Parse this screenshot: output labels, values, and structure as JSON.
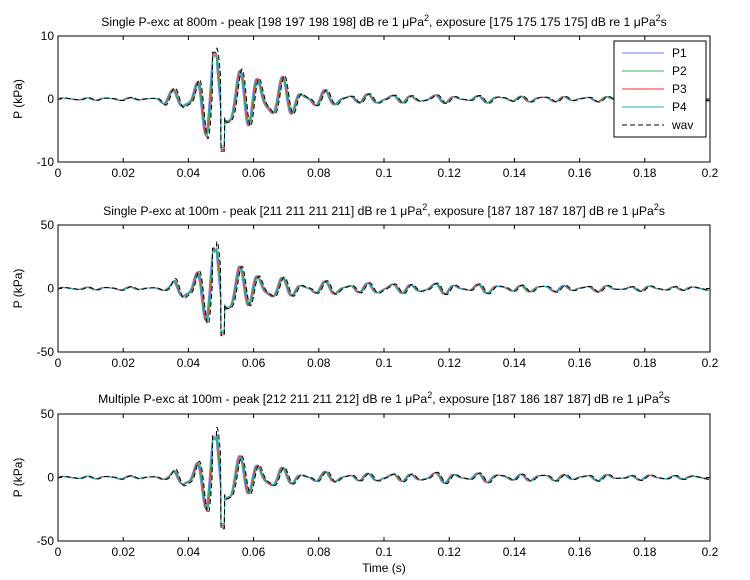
{
  "chart_data": [
    {
      "type": "line",
      "title": {
        "prefix": "Single P-exc at 800m - peak [198  197  198  198] dB re 1 ",
        "mid": ", exposure [175  175  175  175] dB re 1 ",
        "unit1": "μPa",
        "sup1": "2",
        "unit2": "μPa",
        "sup2": "2",
        "end": "s"
      },
      "xlabel": "",
      "ylabel": "P (kPa)",
      "xlim": [
        0,
        0.2
      ],
      "ylim": [
        -10,
        10
      ],
      "xticks": [
        "0",
        "0.02",
        "0.04",
        "0.06",
        "0.08",
        "0.1",
        "0.12",
        "0.14",
        "0.16",
        "0.18",
        "0.2"
      ],
      "yticks": [
        "-10",
        "0",
        "10"
      ],
      "legend": {
        "position": "top-right",
        "entries": [
          "P1",
          "P2",
          "P3",
          "P4",
          "wav"
        ]
      },
      "peak_kpa": [
        7.0,
        -7.8
      ],
      "series_note": "pressure traces P1–P4 and wav overlap almost exactly",
      "envelope": [
        [
          0.0,
          0.2
        ],
        [
          0.03,
          0.25
        ],
        [
          0.036,
          1.5
        ],
        [
          0.04,
          3.0
        ],
        [
          0.044,
          5.5
        ],
        [
          0.048,
          7.0
        ],
        [
          0.051,
          7.5
        ],
        [
          0.054,
          5.0
        ],
        [
          0.058,
          5.0
        ],
        [
          0.062,
          4.0
        ],
        [
          0.066,
          3.2
        ],
        [
          0.07,
          3.0
        ],
        [
          0.076,
          1.8
        ],
        [
          0.084,
          1.0
        ],
        [
          0.1,
          0.7
        ],
        [
          0.12,
          0.6
        ],
        [
          0.14,
          0.5
        ],
        [
          0.16,
          0.4
        ],
        [
          0.18,
          0.35
        ],
        [
          0.2,
          0.3
        ]
      ]
    },
    {
      "type": "line",
      "title": {
        "prefix": "Single P-exc at 100m - peak [211  211  211  211] dB re 1 ",
        "mid": ", exposure [187  187  187  187] dB re 1 ",
        "unit1": "μPa",
        "sup1": "2",
        "unit2": "μPa",
        "sup2": "2",
        "end": "s"
      },
      "xlabel": "",
      "ylabel": "P (kPa)",
      "xlim": [
        0,
        0.2
      ],
      "ylim": [
        -50,
        50
      ],
      "xticks": [
        "0",
        "0.02",
        "0.04",
        "0.06",
        "0.08",
        "0.1",
        "0.12",
        "0.14",
        "0.16",
        "0.18",
        "0.2"
      ],
      "yticks": [
        "-50",
        "0",
        "50"
      ],
      "peak_kpa": [
        30,
        -35
      ],
      "envelope": [
        [
          0.0,
          1.0
        ],
        [
          0.034,
          1.5
        ],
        [
          0.038,
          12
        ],
        [
          0.041,
          20
        ],
        [
          0.044,
          24
        ],
        [
          0.047,
          30
        ],
        [
          0.05,
          35
        ],
        [
          0.054,
          22
        ],
        [
          0.058,
          16
        ],
        [
          0.062,
          12
        ],
        [
          0.066,
          9
        ],
        [
          0.07,
          7
        ],
        [
          0.08,
          5
        ],
        [
          0.1,
          4
        ],
        [
          0.12,
          4
        ],
        [
          0.14,
          3
        ],
        [
          0.16,
          2.5
        ],
        [
          0.18,
          2
        ],
        [
          0.2,
          1.5
        ]
      ]
    },
    {
      "type": "line",
      "title": {
        "prefix": "Multiple P-exc at 100m - peak [212  211  211  212] dB re 1 ",
        "mid": ", exposure [187  186  187  187] dB re 1 ",
        "unit1": "μPa",
        "sup1": "2",
        "unit2": "μPa",
        "sup2": "2",
        "end": "s"
      },
      "xlabel": "Time (s)",
      "ylabel": "P (kPa)",
      "xlim": [
        0,
        0.2
      ],
      "ylim": [
        -50,
        50
      ],
      "xticks": [
        "0",
        "0.02",
        "0.04",
        "0.06",
        "0.08",
        "0.1",
        "0.12",
        "0.14",
        "0.16",
        "0.18",
        "0.2"
      ],
      "yticks": [
        "-50",
        "0",
        "50"
      ],
      "peak_kpa": [
        31,
        -38
      ],
      "envelope": [
        [
          0.0,
          1.0
        ],
        [
          0.034,
          1.5
        ],
        [
          0.038,
          10
        ],
        [
          0.041,
          18
        ],
        [
          0.044,
          22
        ],
        [
          0.047,
          31
        ],
        [
          0.05,
          38
        ],
        [
          0.054,
          22
        ],
        [
          0.058,
          15
        ],
        [
          0.062,
          12
        ],
        [
          0.066,
          9
        ],
        [
          0.07,
          6
        ],
        [
          0.08,
          4
        ],
        [
          0.1,
          3
        ],
        [
          0.12,
          4
        ],
        [
          0.14,
          3
        ],
        [
          0.16,
          2.5
        ],
        [
          0.18,
          2
        ],
        [
          0.2,
          1.5
        ]
      ]
    }
  ],
  "series": [
    {
      "name": "P1",
      "color": "#6f7fff",
      "dash": ""
    },
    {
      "name": "P2",
      "color": "#39b54a",
      "dash": ""
    },
    {
      "name": "P3",
      "color": "#ff2a2a",
      "dash": ""
    },
    {
      "name": "P4",
      "color": "#1fb7b7",
      "dash": ""
    },
    {
      "name": "wav",
      "color": "#000000",
      "dash": "5,3"
    }
  ]
}
